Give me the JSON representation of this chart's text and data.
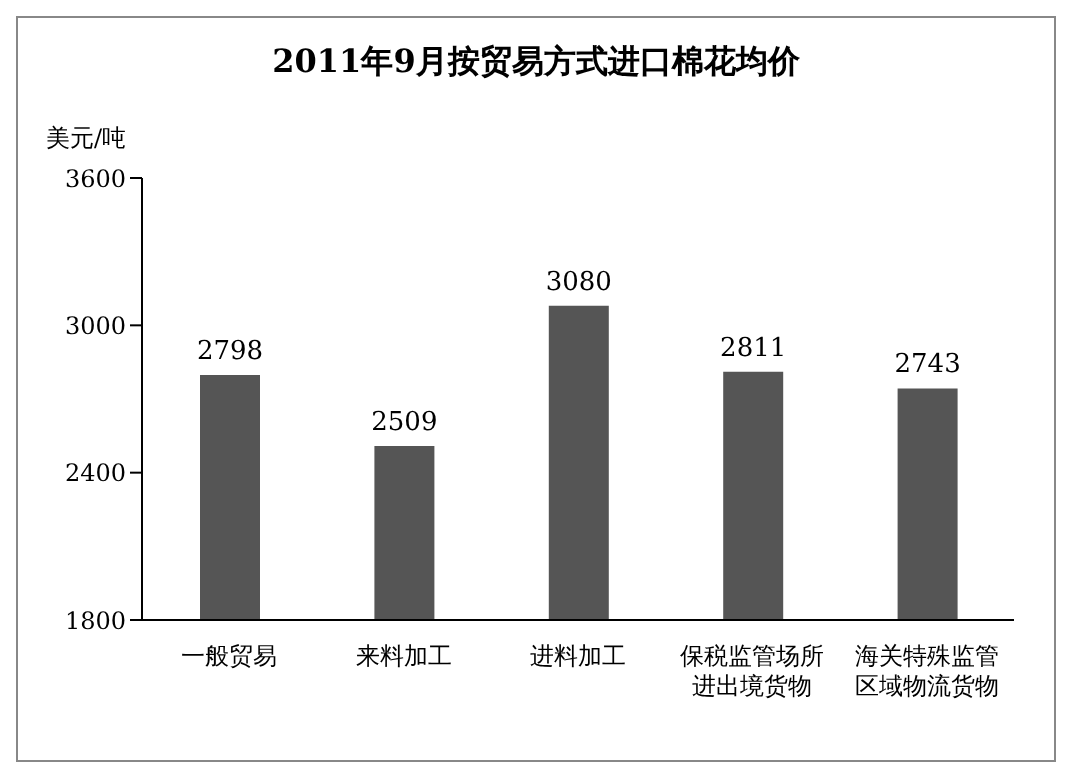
{
  "chart_data": {
    "type": "bar",
    "title": "2011年9月按贸易方式进口棉花均价",
    "ylabel": "美元/吨",
    "categories": [
      "一般贸易",
      "来料加工",
      "进料加工",
      "保税监管场所进出境货物",
      "海关特殊监管区域物流货物"
    ],
    "values": [
      2798,
      2509,
      3080,
      2811,
      2743
    ],
    "color": "#555555",
    "ylim": [
      1800,
      3600
    ],
    "yticks": [
      1800,
      2400,
      3000,
      3600
    ],
    "grid": false,
    "data_labels": true
  }
}
